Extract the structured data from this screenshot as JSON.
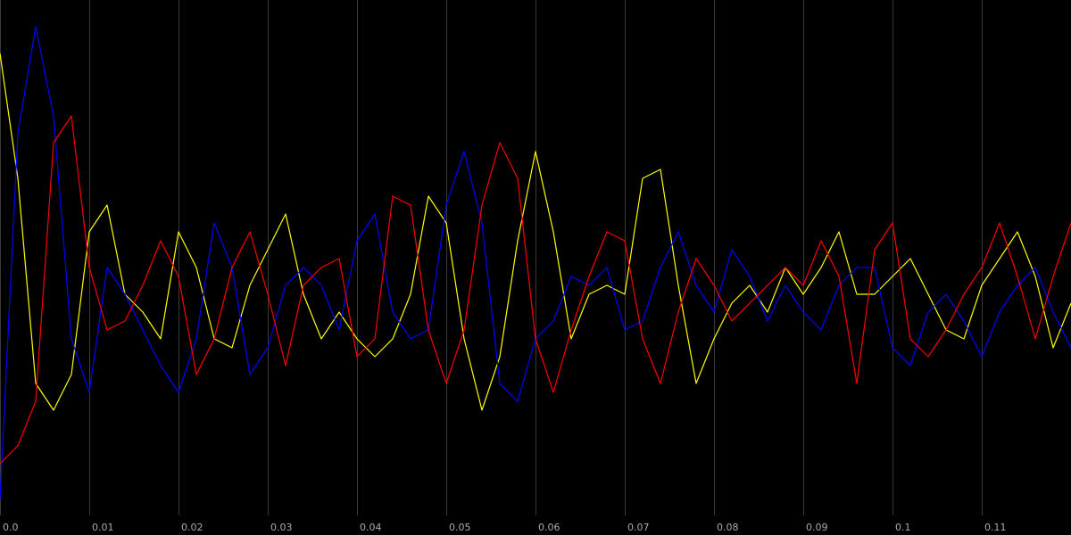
{
  "chart_data": {
    "type": "line",
    "x": [
      0,
      0.002,
      0.004,
      0.006,
      0.008,
      0.01,
      0.012,
      0.014,
      0.016,
      0.018,
      0.02,
      0.022,
      0.024,
      0.026,
      0.028,
      0.03,
      0.032,
      0.034,
      0.036,
      0.038,
      0.04,
      0.042,
      0.044,
      0.046,
      0.048,
      0.05,
      0.052,
      0.054,
      0.056,
      0.058,
      0.06,
      0.062,
      0.064,
      0.066,
      0.068,
      0.07,
      0.072,
      0.074,
      0.076,
      0.078,
      0.08,
      0.082,
      0.084,
      0.086,
      0.088,
      0.09,
      0.092,
      0.094,
      0.096,
      0.098,
      0.1,
      0.102,
      0.104,
      0.106,
      0.108,
      0.11,
      0.112,
      0.114,
      0.116,
      0.118,
      0.12
    ],
    "series": [
      {
        "color": "#ffff00",
        "values": [
          240,
          100,
          -130,
          -160,
          -120,
          40,
          70,
          -30,
          -50,
          -80,
          40,
          0,
          -80,
          -90,
          -20,
          20,
          60,
          -30,
          -80,
          -50,
          -80,
          -100,
          -80,
          -30,
          80,
          50,
          -80,
          -160,
          -100,
          30,
          130,
          40,
          -80,
          -30,
          -20,
          -30,
          100,
          110,
          -20,
          -130,
          -80,
          -40,
          -20,
          -50,
          0,
          -30,
          0,
          40,
          -30,
          -30,
          -10,
          10,
          -30,
          -70,
          -80,
          -20,
          10,
          40,
          -10,
          -90,
          -40
        ]
      },
      {
        "color": "#0000ff",
        "values": [
          -260,
          150,
          270,
          170,
          -80,
          -140,
          0,
          -30,
          -70,
          -110,
          -140,
          -80,
          50,
          0,
          -120,
          -90,
          -20,
          0,
          -20,
          -70,
          30,
          60,
          -50,
          -80,
          -70,
          70,
          130,
          50,
          -130,
          -150,
          -80,
          -60,
          -10,
          -20,
          0,
          -70,
          -60,
          0,
          40,
          -20,
          -50,
          20,
          -10,
          -60,
          -20,
          -50,
          -70,
          -20,
          0,
          0,
          -90,
          -110,
          -50,
          -30,
          -60,
          -100,
          -50,
          -20,
          0,
          -50,
          -90
        ]
      },
      {
        "color": "#ff0000",
        "values": [
          -220,
          -200,
          -150,
          140,
          170,
          0,
          -70,
          -60,
          -20,
          30,
          -10,
          -120,
          -80,
          0,
          40,
          -30,
          -110,
          -20,
          0,
          10,
          -100,
          -80,
          80,
          70,
          -70,
          -130,
          -70,
          70,
          140,
          100,
          -80,
          -140,
          -70,
          -10,
          40,
          30,
          -80,
          -130,
          -50,
          10,
          -20,
          -60,
          -40,
          -20,
          0,
          -20,
          30,
          -10,
          -130,
          20,
          50,
          -80,
          -100,
          -70,
          -30,
          0,
          50,
          -10,
          -80,
          -10,
          50
        ]
      }
    ],
    "xlim": [
      0,
      0.12
    ],
    "ylim": [
      -300,
      300
    ],
    "xticks": [
      {
        "value": 0,
        "label": "0.0"
      },
      0.01,
      0.02,
      0.03,
      0.04,
      0.05,
      0.06,
      0.07,
      0.08,
      0.09,
      0.1,
      0.11
    ],
    "grid": true
  }
}
